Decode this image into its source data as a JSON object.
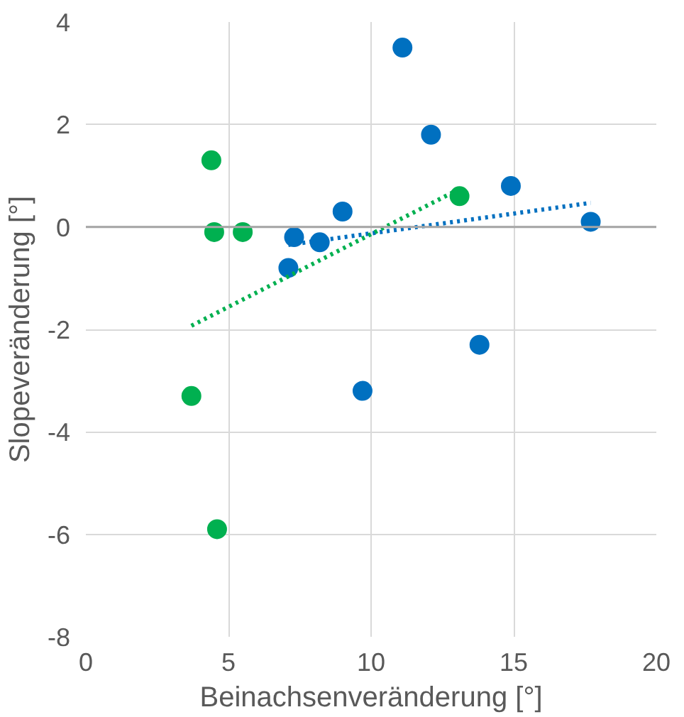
{
  "chart_data": {
    "type": "scatter",
    "xlabel": "Beinachsenveränderung [°]",
    "ylabel": "Slopeveränderung [°]",
    "xlim": [
      0,
      20
    ],
    "xticks": [
      0,
      5,
      10,
      15,
      20
    ],
    "ylim": [
      -8,
      4
    ],
    "yticks": [
      -8,
      -6,
      -4,
      -2,
      0,
      2,
      4
    ],
    "grid": true,
    "series": [
      {
        "marker": "circle",
        "color": "#0070c0",
        "x": [
          11.1,
          12.1,
          14.9,
          17.7,
          9.0,
          7.3,
          8.2,
          7.1,
          13.8,
          9.7
        ],
        "values": [
          3.5,
          1.8,
          0.8,
          0.1,
          0.3,
          -0.2,
          -0.3,
          -0.8,
          -2.3,
          -3.2
        ]
      },
      {
        "marker": "circle",
        "color": "#00b050",
        "x": [
          4.4,
          4.5,
          5.5,
          13.1,
          3.7,
          4.6
        ],
        "values": [
          1.3,
          -0.1,
          -0.1,
          0.6,
          -3.3,
          -5.9
        ]
      },
      {
        "type": "line",
        "line_style": "dotted",
        "color": "#0070c0",
        "x": [
          7.1,
          17.7
        ],
        "values": [
          -0.35,
          0.47
        ]
      },
      {
        "type": "line",
        "line_style": "dotted",
        "color": "#00b050",
        "x": [
          3.7,
          13.1
        ],
        "values": [
          -1.93,
          0.74
        ]
      }
    ]
  }
}
